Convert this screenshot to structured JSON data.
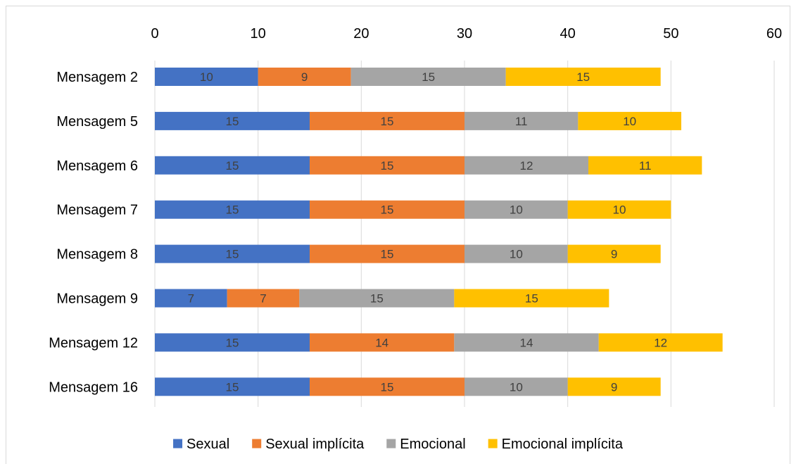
{
  "chart_data": {
    "type": "bar",
    "orientation": "horizontal",
    "stacked": true,
    "title": "",
    "xlabel": "",
    "ylabel": "",
    "xlim": [
      0,
      60
    ],
    "x_ticks": [
      0,
      10,
      20,
      30,
      40,
      50,
      60
    ],
    "x_axis_position": "top",
    "grid": true,
    "legend_position": "bottom",
    "categories": [
      "Mensagem 2",
      "Mensagem 5",
      "Mensagem 6",
      "Mensagem 7",
      "Mensagem 8",
      "Mensagem 9",
      "Mensagem 12",
      "Mensagem 16"
    ],
    "series": [
      {
        "name": "Sexual",
        "color": "#4472C4",
        "values": [
          10,
          15,
          15,
          15,
          15,
          7,
          15,
          15
        ]
      },
      {
        "name": "Sexual implícita",
        "color": "#ED7D31",
        "values": [
          9,
          15,
          15,
          15,
          15,
          7,
          14,
          15
        ]
      },
      {
        "name": "Emocional",
        "color": "#A5A5A5",
        "values": [
          15,
          11,
          12,
          10,
          10,
          15,
          14,
          10
        ]
      },
      {
        "name": "Emocional implícita",
        "color": "#FFC000",
        "values": [
          15,
          10,
          11,
          10,
          9,
          15,
          12,
          9
        ]
      }
    ]
  }
}
